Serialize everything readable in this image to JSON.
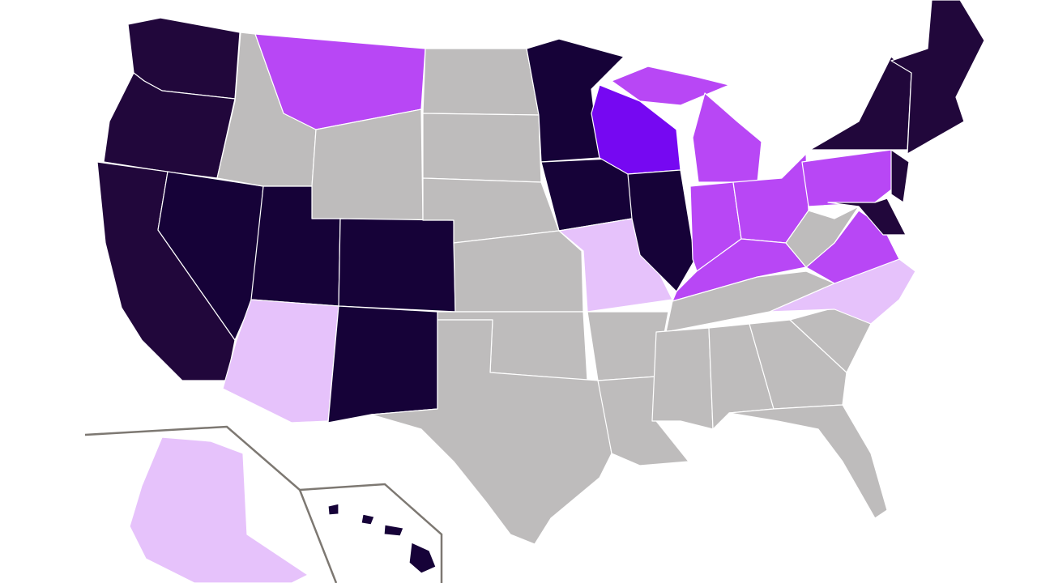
{
  "map": {
    "palette": [
      "#21073b",
      "#b847f5",
      "#7608f2",
      "#e6c2fb",
      "#bebcbc",
      "#160238"
    ]
  }
}
